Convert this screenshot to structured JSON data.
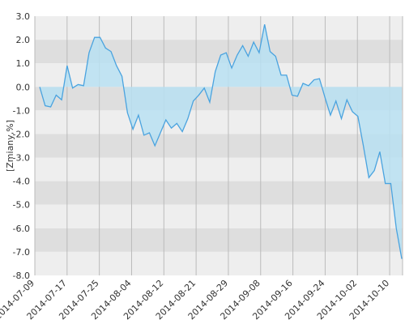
{
  "chart_data": {
    "type": "area",
    "title": "",
    "xlabel": "",
    "ylabel": "[Zmiany,%]",
    "ylim": [
      -8.0,
      3.0
    ],
    "y_ticks": [
      "3.0",
      "2.0",
      "1.0",
      "0.0",
      "-1.0",
      "-2.0",
      "-3.0",
      "-4.0",
      "-5.0",
      "-6.0",
      "-7.0",
      "-8.0"
    ],
    "x_ticks": [
      "2014-07-09",
      "2014-07-17",
      "2014-07-25",
      "2014-08-04",
      "2014-08-12",
      "2014-08-21",
      "2014-08-29",
      "2014-09-08",
      "2014-09-16",
      "2014-09-24",
      "2014-10-02",
      "2014-10-10"
    ],
    "grid": true,
    "legend": "none",
    "colors": {
      "line": "#4aa3df",
      "fill": "#b9e1f2",
      "band_light": "#eeeeee",
      "band_dark": "#dedede",
      "vgrid": "#bbbbbb"
    },
    "series": [
      {
        "values": [
          0.0,
          -0.8,
          -0.85,
          -0.35,
          -0.55,
          0.9,
          -0.05,
          0.1,
          0.05,
          1.45,
          2.1,
          2.1,
          1.65,
          1.5,
          0.9,
          0.45,
          -1.1,
          -1.8,
          -1.2,
          -2.05,
          -1.95,
          -2.5,
          -1.95,
          -1.4,
          -1.75,
          -1.55,
          -1.9,
          -1.35,
          -0.6,
          -0.35,
          -0.05,
          -0.65,
          0.65,
          1.35,
          1.45,
          0.8,
          1.35,
          1.75,
          1.3,
          1.9,
          1.45,
          2.65,
          1.5,
          1.3,
          0.5,
          0.5,
          -0.35,
          -0.4,
          0.15,
          0.05,
          0.3,
          0.35,
          -0.45,
          -1.2,
          -0.6,
          -1.35,
          -0.55,
          -1.05,
          -1.25,
          -2.5,
          -3.85,
          -3.55,
          -2.75,
          -4.1,
          -4.1,
          -6.0,
          -7.3
        ]
      }
    ]
  }
}
